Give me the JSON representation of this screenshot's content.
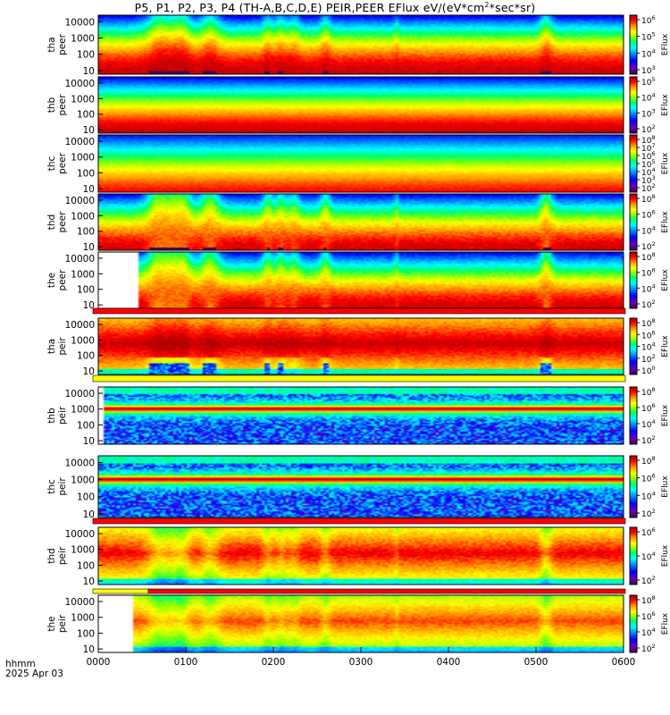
{
  "title_main": "P5, P1, P2, P3, P4 (TH-A,B,C,D,E) PEIR,PEER EFlux eV/(eV*cm",
  "title_sup": "2",
  "title_tail": "*sec*sr)",
  "footer": {
    "line1": "hhmm",
    "line2": "2025 Apr 03"
  },
  "colors": {
    "bar_red": "#ff0000",
    "bar_yellow": "#ffff00"
  },
  "chart_data": {
    "type": "heatmap",
    "x_tick_labels": [
      "0000",
      "0100",
      "0200",
      "0300",
      "0400",
      "0500",
      "0600"
    ],
    "x_range_hours": [
      0,
      6
    ],
    "y_tick_labels": [
      "10",
      "100",
      "1000",
      "10000"
    ],
    "y_scale": "log",
    "y_range_eV": [
      6,
      25000
    ],
    "colorbar_label": "EFlux",
    "panels": [
      {
        "probe": "tha",
        "species": "peer",
        "cb": [
          {
            "b": "10",
            "e": "6"
          },
          {
            "b": "10",
            "e": "5"
          },
          {
            "b": "10",
            "e": "4"
          },
          {
            "b": "10",
            "e": "3"
          }
        ],
        "style": "peer_a",
        "start_gap": 0
      },
      {
        "probe": "thb",
        "species": "peer",
        "cb": [
          {
            "b": "10",
            "e": "5"
          },
          {
            "b": "10",
            "e": "4"
          },
          {
            "b": "10",
            "e": "3"
          },
          {
            "b": "10",
            "e": "2"
          }
        ],
        "style": "peer_b",
        "start_gap": 0
      },
      {
        "probe": "thc",
        "species": "peer",
        "cb": [
          {
            "b": "10",
            "e": "8"
          },
          {
            "b": "10",
            "e": "7"
          },
          {
            "b": "10",
            "e": "6"
          },
          {
            "b": "10",
            "e": "5"
          },
          {
            "b": "10",
            "e": "4"
          },
          {
            "b": "10",
            "e": "3"
          },
          {
            "b": "10",
            "e": "2"
          }
        ],
        "style": "peer_c",
        "start_gap": 0
      },
      {
        "probe": "thd",
        "species": "peer",
        "cb": [
          {
            "b": "10",
            "e": "8"
          },
          {
            "b": "10",
            "e": "6"
          },
          {
            "b": "10",
            "e": "4"
          },
          {
            "b": "10",
            "e": "2"
          }
        ],
        "style": "peer_d",
        "start_gap": 0
      },
      {
        "probe": "the",
        "species": "peer",
        "cb": [
          {
            "b": "10",
            "e": "8"
          },
          {
            "b": "10",
            "e": "6"
          },
          {
            "b": "10",
            "e": "4"
          },
          {
            "b": "10",
            "e": "2"
          }
        ],
        "style": "peer_e",
        "start_gap": 0.76
      },
      {
        "probe": "tha",
        "species": "peir",
        "cb": [
          {
            "b": "10",
            "e": "8"
          },
          {
            "b": "10",
            "e": "6"
          },
          {
            "b": "10",
            "e": "4"
          },
          {
            "b": "10",
            "e": "2"
          },
          {
            "b": "10",
            "e": "0"
          }
        ],
        "style": "peir_a",
        "start_gap": 0
      },
      {
        "probe": "thb",
        "species": "peir",
        "cb": [
          {
            "b": "10",
            "e": "8"
          },
          {
            "b": "10",
            "e": "6"
          },
          {
            "b": "10",
            "e": "4"
          },
          {
            "b": "10",
            "e": "2"
          }
        ],
        "style": "peir_b",
        "start_gap": 0.1
      },
      {
        "probe": "thc",
        "species": "peir",
        "cb": [
          {
            "b": "10",
            "e": "8"
          },
          {
            "b": "10",
            "e": "6"
          },
          {
            "b": "10",
            "e": "4"
          },
          {
            "b": "10",
            "e": "2"
          }
        ],
        "style": "peir_c",
        "start_gap": 0
      },
      {
        "probe": "thd",
        "species": "peir",
        "cb": [
          {
            "b": "10",
            "e": "6"
          },
          {
            "b": "10",
            "e": "4"
          },
          {
            "b": "10",
            "e": "2"
          }
        ],
        "style": "peir_d",
        "start_gap": 0
      },
      {
        "probe": "the",
        "species": "peir",
        "cb": [
          {
            "b": "10",
            "e": "8"
          },
          {
            "b": "10",
            "e": "6"
          },
          {
            "b": "10",
            "e": "4"
          },
          {
            "b": "10",
            "e": "2"
          }
        ],
        "style": "peir_e",
        "start_gap": 0.63
      }
    ]
  }
}
